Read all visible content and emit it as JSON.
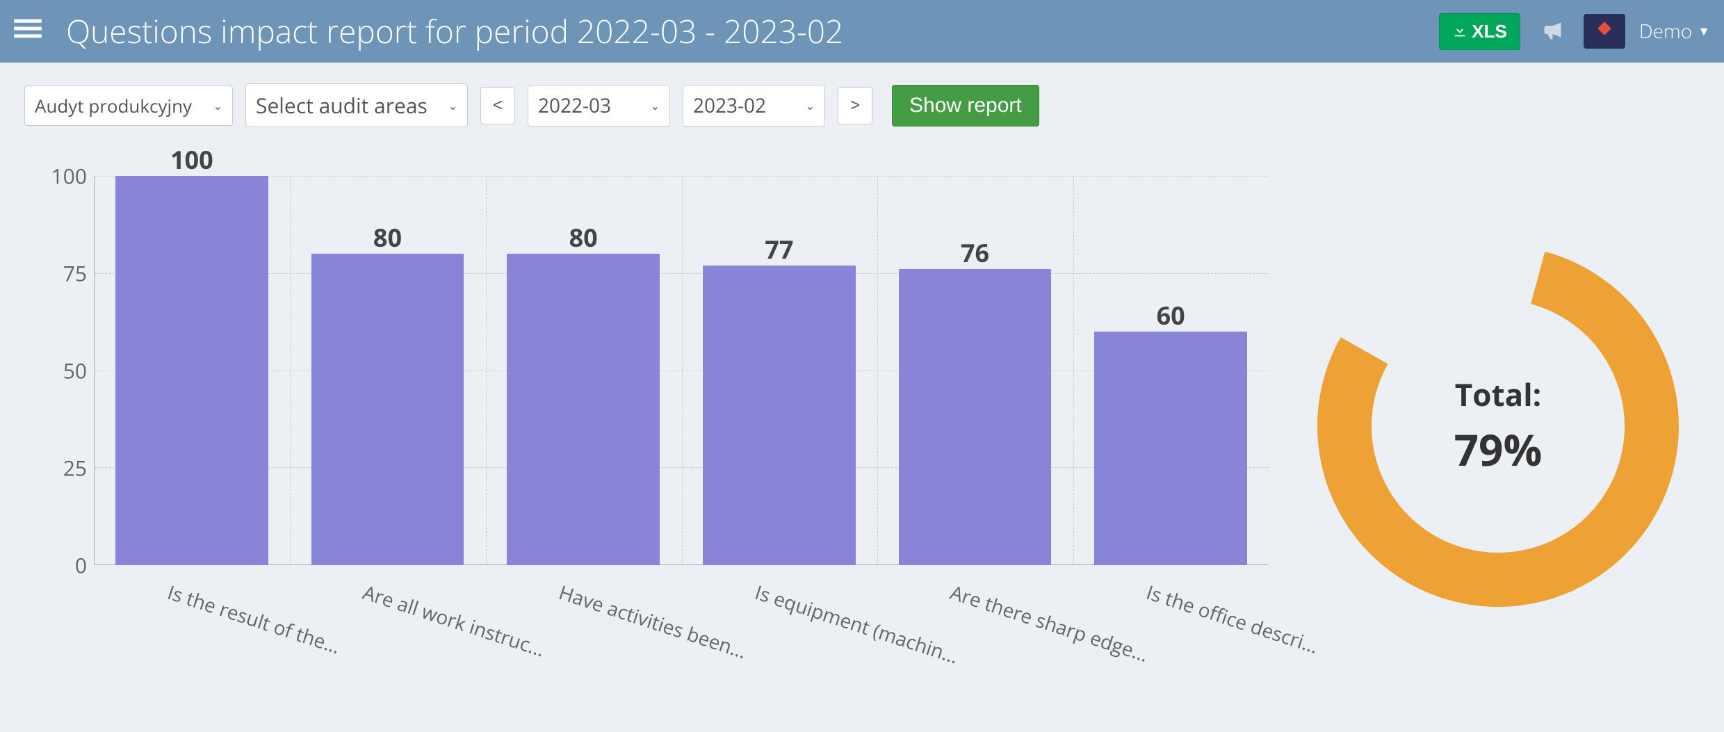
{
  "header": {
    "title": "Questions impact report for period 2022-03 - 2023-02",
    "xls_label": "XLS",
    "user_label": "Demo"
  },
  "toolbar": {
    "audit_type_selected": "Audyt produkcyjny",
    "audit_areas_placeholder": "Select audit areas",
    "prev_label": "<",
    "date_from": "2022-03",
    "date_to": "2023-02",
    "next_label": ">",
    "show_report_label": "Show report"
  },
  "chart": {
    "type": "bar",
    "ylim": [
      0,
      100
    ],
    "ytick_step": 25,
    "yticks": [
      0,
      25,
      50,
      75,
      100
    ],
    "bar_color": "#8884d8",
    "grid_color": "#cccccc",
    "axis_color": "#aaaaaa",
    "label_color": "#666666",
    "value_label_color": "#444444",
    "value_label_fontsize": 36,
    "axis_label_fontsize": 30,
    "x_label_fontsize": 28,
    "x_label_rotation_deg": 18,
    "bar_width_ratio": 0.78,
    "background_color": "#ecf0f5",
    "categories": [
      "Is the result of the...",
      "Are all work instruc...",
      "Have activities been...",
      "Is equipment (machin...",
      "Are there sharp edge...",
      "Is the office descri..."
    ],
    "values": [
      100,
      80,
      80,
      77,
      76,
      60
    ]
  },
  "donut": {
    "title": "Total:",
    "percent": 79,
    "value_text": "79%",
    "color": "#eea236",
    "track_color": "#ecf0f5",
    "thickness": 78,
    "radius": 260
  }
}
